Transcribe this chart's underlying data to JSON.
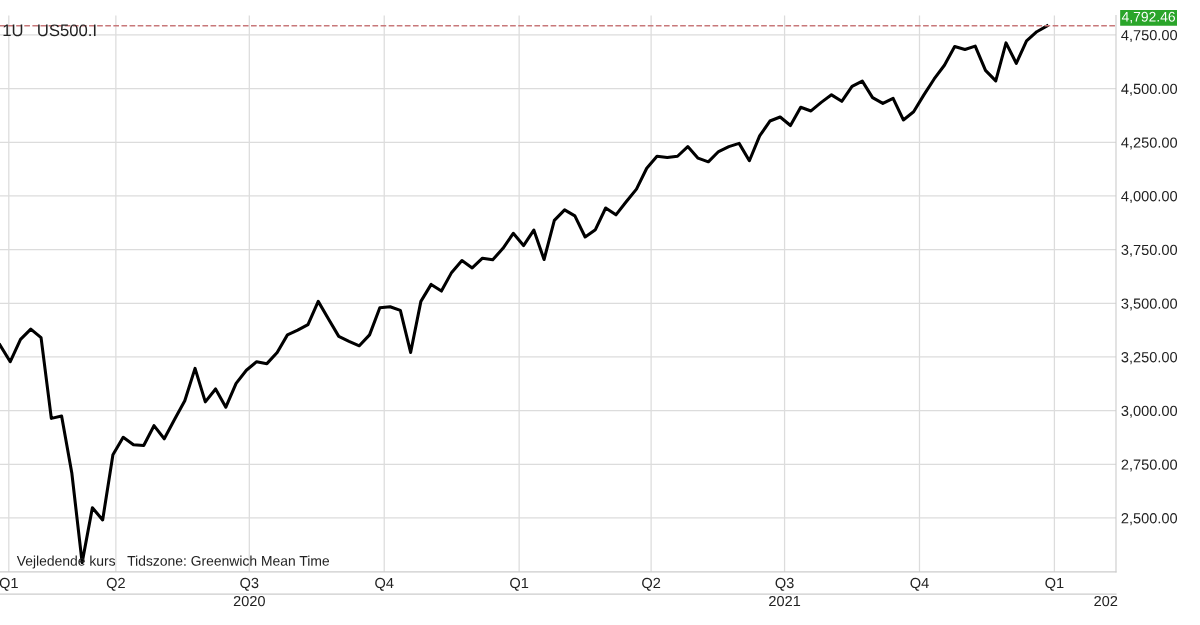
{
  "chart_data": {
    "type": "line",
    "title": "1U",
    "subtitle": "US500.I",
    "annotations": [
      "Vejledende kurs",
      "Tidszone: Greenwich Mean Time"
    ],
    "x": [
      "2020-01-13",
      "2020-01-20",
      "2020-01-27",
      "2020-02-03",
      "2020-02-10",
      "2020-02-17",
      "2020-02-24",
      "2020-03-02",
      "2020-03-09",
      "2020-03-16",
      "2020-03-23",
      "2020-03-30",
      "2020-04-06",
      "2020-04-13",
      "2020-04-20",
      "2020-04-27",
      "2020-05-04",
      "2020-05-11",
      "2020-05-18",
      "2020-05-25",
      "2020-06-01",
      "2020-06-08",
      "2020-06-15",
      "2020-06-22",
      "2020-06-29",
      "2020-07-06",
      "2020-07-13",
      "2020-07-20",
      "2020-07-27",
      "2020-08-03",
      "2020-08-10",
      "2020-08-17",
      "2020-08-24",
      "2020-08-31",
      "2020-09-07",
      "2020-09-14",
      "2020-09-21",
      "2020-09-28",
      "2020-10-05",
      "2020-10-12",
      "2020-10-19",
      "2020-10-26",
      "2020-11-02",
      "2020-11-09",
      "2020-11-16",
      "2020-11-23",
      "2020-11-30",
      "2020-12-07",
      "2020-12-14",
      "2020-12-21",
      "2020-12-28",
      "2021-01-04",
      "2021-01-11",
      "2021-01-18",
      "2021-01-25",
      "2021-02-01",
      "2021-02-08",
      "2021-02-15",
      "2021-02-22",
      "2021-03-01",
      "2021-03-08",
      "2021-03-15",
      "2021-03-22",
      "2021-03-29",
      "2021-04-05",
      "2021-04-12",
      "2021-04-19",
      "2021-04-26",
      "2021-05-03",
      "2021-05-10",
      "2021-05-17",
      "2021-05-24",
      "2021-05-31",
      "2021-06-07",
      "2021-06-14",
      "2021-06-21",
      "2021-06-28",
      "2021-07-05",
      "2021-07-12",
      "2021-07-19",
      "2021-07-26",
      "2021-08-02",
      "2021-08-09",
      "2021-08-16",
      "2021-08-23",
      "2021-08-30",
      "2021-09-06",
      "2021-09-13",
      "2021-09-20",
      "2021-09-27",
      "2021-10-04",
      "2021-10-11",
      "2021-10-18",
      "2021-10-25",
      "2021-11-01",
      "2021-11-08",
      "2021-11-15",
      "2021-11-22",
      "2021-11-29",
      "2021-12-06",
      "2021-12-13",
      "2021-12-20",
      "2021-12-27"
    ],
    "series": [
      {
        "color": "#000000",
        "values": [
          3306,
          3228,
          3332,
          3380,
          3340,
          2964,
          2975,
          2708,
          2292,
          2548,
          2491,
          2795,
          2876,
          2841,
          2838,
          2930,
          2869,
          2959,
          3046,
          3197,
          3041,
          3101,
          3016,
          3127,
          3188,
          3228,
          3219,
          3271,
          3353,
          3375,
          3401,
          3509,
          3427,
          3346,
          3323,
          3302,
          3353,
          3479,
          3484,
          3467,
          3271,
          3509,
          3588,
          3557,
          3644,
          3699,
          3665,
          3710,
          3703,
          3756,
          3826,
          3769,
          3841,
          3704,
          3886,
          3935,
          3907,
          3809,
          3843,
          3944,
          3912,
          3973,
          4032,
          4129,
          4185,
          4179,
          4185,
          4230,
          4176,
          4159,
          4207,
          4230,
          4245,
          4164,
          4280,
          4349,
          4368,
          4328,
          4413,
          4396,
          4436,
          4471,
          4441,
          4510,
          4535,
          4458,
          4431,
          4455,
          4354,
          4392,
          4471,
          4545,
          4609,
          4696,
          4682,
          4698,
          4585,
          4536,
          4713,
          4618,
          4722,
          4765,
          4792
        ]
      }
    ],
    "xlim": [
      "2020-01-13",
      "2022-02-12"
    ],
    "xticks": [
      {
        "value": "2020-01-19",
        "label": "Q1"
      },
      {
        "value": "2020-04-01",
        "label": "Q2"
      },
      {
        "value": "2020-07-01",
        "label": "Q3"
      },
      {
        "value": "2020-10-01",
        "label": "Q4"
      },
      {
        "value": "2021-01-01",
        "label": "Q1"
      },
      {
        "value": "2021-04-01",
        "label": "Q2"
      },
      {
        "value": "2021-07-01",
        "label": "Q3"
      },
      {
        "value": "2021-10-01",
        "label": "Q4"
      },
      {
        "value": "2022-01-01",
        "label": "Q1"
      }
    ],
    "x2lim": [
      "2020-01-13",
      "2022-02-12"
    ],
    "x2ticks": [
      {
        "value": "2020-07-01",
        "label": "2020"
      },
      {
        "value": "2021-07-01",
        "label": "2021"
      },
      {
        "value": "2022-02-05",
        "label": "202"
      }
    ],
    "ylim": [
      2249,
      4840
    ],
    "yticks": [
      {
        "value": 2500,
        "label": "2,500.00"
      },
      {
        "value": 2750,
        "label": "2,750.00"
      },
      {
        "value": 3000,
        "label": "3,000.00"
      },
      {
        "value": 3250,
        "label": "3,250.00"
      },
      {
        "value": 3500,
        "label": "3,500.00"
      },
      {
        "value": 3750,
        "label": "3,750.00"
      },
      {
        "value": 4000,
        "label": "4,000.00"
      },
      {
        "value": 4250,
        "label": "4,250.00"
      },
      {
        "value": 4500,
        "label": "4,500.00"
      },
      {
        "value": 4750,
        "label": "4,750.00"
      }
    ],
    "ref_lines": [
      {
        "axis": "y",
        "value": 4792.46,
        "label": "4,792.46",
        "color": "#c8787a",
        "line_style": "dashed"
      }
    ],
    "grid": true,
    "legend": false,
    "marker": "none",
    "line_style": "solid"
  }
}
